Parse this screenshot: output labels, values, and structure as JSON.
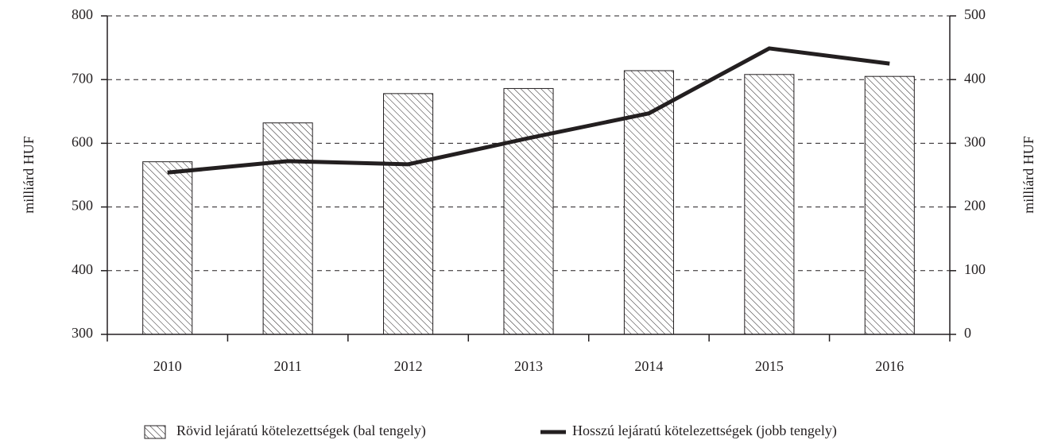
{
  "chart_data": {
    "type": "bar",
    "categories": [
      "2010",
      "2011",
      "2012",
      "2013",
      "2014",
      "2015",
      "2016"
    ],
    "series": [
      {
        "name": "Rövid lejáratú kötelezettségek (bal tengely)",
        "type": "bar",
        "color": "#231f20",
        "pattern": "hatch",
        "values": [
          571,
          632,
          678,
          686,
          714,
          708,
          705
        ]
      },
      {
        "name": "Hosszú lejáratú kötelezettségek (jobb tengely)",
        "type": "line",
        "axis": "y2",
        "color": "#231f20",
        "values": [
          254,
          272,
          267,
          308,
          347,
          449,
          425
        ]
      }
    ],
    "ylabel": "milliárd HUF",
    "y2label": "milliárd HUF",
    "ylim": [
      300,
      800
    ],
    "yticks": [
      300,
      400,
      500,
      600,
      700,
      800
    ],
    "y2lim": [
      0,
      500
    ],
    "y2ticks": [
      0,
      100,
      200,
      300,
      400,
      500
    ],
    "grid": true,
    "legend": "bottom"
  }
}
